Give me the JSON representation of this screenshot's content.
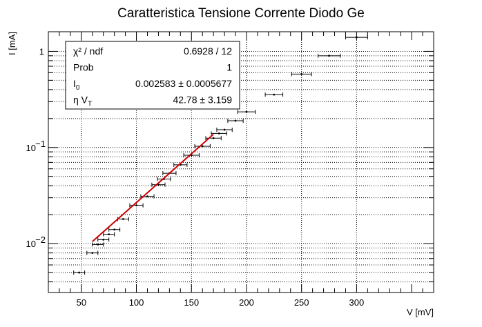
{
  "chart_data": {
    "type": "scatter",
    "title": "Caratteristica Tensione Corrente Diodo Ge",
    "xlabel": "V [mV]",
    "ylabel": "I [mA]",
    "xlim": [
      20,
      370
    ],
    "ylim": [
      0.0031,
      1.6
    ],
    "yscale": "log",
    "grid": true,
    "x_ticks": [
      50,
      100,
      150,
      200,
      250,
      300
    ],
    "y_ticks": [
      {
        "value": 0.01,
        "base": "10",
        "exp": "−2"
      },
      {
        "value": 0.1,
        "base": "10",
        "exp": "−1"
      },
      {
        "value": 1,
        "base": "1",
        "exp": ""
      }
    ],
    "series": [
      {
        "points": [
          {
            "x": 48,
            "y": 0.005,
            "xerr": 5
          },
          {
            "x": 60,
            "y": 0.008,
            "xerr": 5
          },
          {
            "x": 65,
            "y": 0.0098,
            "xerr": 5
          },
          {
            "x": 70,
            "y": 0.011,
            "xerr": 5
          },
          {
            "x": 75,
            "y": 0.0125,
            "xerr": 5
          },
          {
            "x": 80,
            "y": 0.014,
            "xerr": 5
          },
          {
            "x": 88,
            "y": 0.018,
            "xerr": 5
          },
          {
            "x": 100,
            "y": 0.025,
            "xerr": 6
          },
          {
            "x": 110,
            "y": 0.031,
            "xerr": 6
          },
          {
            "x": 120,
            "y": 0.041,
            "xerr": 6
          },
          {
            "x": 125,
            "y": 0.047,
            "xerr": 6
          },
          {
            "x": 130,
            "y": 0.054,
            "xerr": 6
          },
          {
            "x": 140,
            "y": 0.066,
            "xerr": 6
          },
          {
            "x": 150,
            "y": 0.083,
            "xerr": 7
          },
          {
            "x": 160,
            "y": 0.103,
            "xerr": 7
          },
          {
            "x": 170,
            "y": 0.125,
            "xerr": 7
          },
          {
            "x": 175,
            "y": 0.14,
            "xerr": 7
          },
          {
            "x": 180,
            "y": 0.153,
            "xerr": 7
          },
          {
            "x": 190,
            "y": 0.19,
            "xerr": 7
          },
          {
            "x": 200,
            "y": 0.235,
            "xerr": 8
          },
          {
            "x": 225,
            "y": 0.355,
            "xerr": 8
          },
          {
            "x": 250,
            "y": 0.58,
            "xerr": 9
          },
          {
            "x": 275,
            "y": 0.9,
            "xerr": 10
          },
          {
            "x": 300,
            "y": 1.4,
            "xerr": 10
          }
        ]
      }
    ],
    "fit": {
      "x_range": [
        60,
        170
      ],
      "color": "#cc0000",
      "I0": 0.002583,
      "etaVT": 42.78
    },
    "stats": [
      {
        "label": "χ² / ndf",
        "value": "0.6928 / 12"
      },
      {
        "label": "Prob",
        "value": "1"
      },
      {
        "label": "I",
        "sub": "0",
        "value": "0.002583 ± 0.0005677"
      },
      {
        "label": "η V",
        "sub": "T",
        "value": "42.78 ± 3.159"
      }
    ]
  }
}
